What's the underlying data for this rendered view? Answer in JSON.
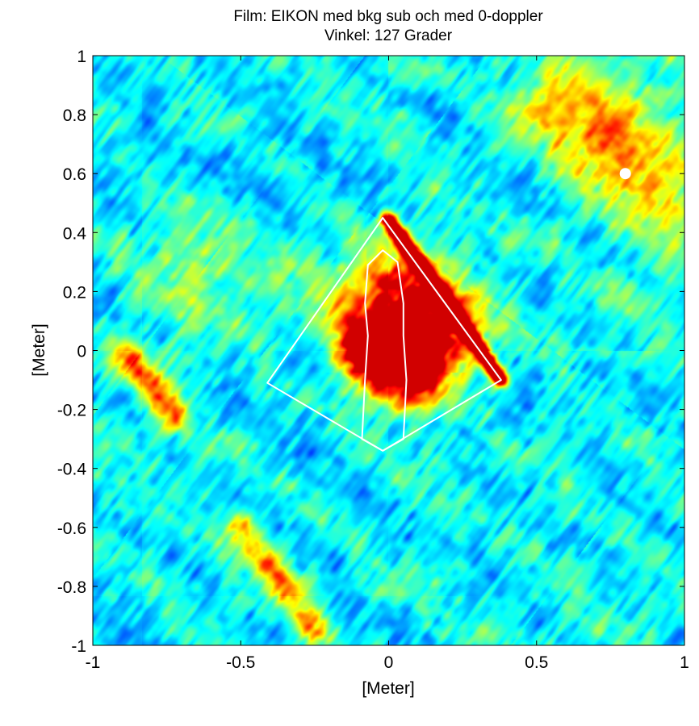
{
  "chart_data": {
    "type": "heatmap",
    "title": [
      "Film: EIKON med bkg sub och med 0-doppler",
      "Vinkel: 127 Grader"
    ],
    "xlabel": "[Meter]",
    "ylabel": "[Meter]",
    "xlim": [
      -1,
      1
    ],
    "ylim": [
      -1,
      1
    ],
    "xticks": [
      -1,
      -0.5,
      0,
      0.5,
      1
    ],
    "xtick_labels": [
      "-1",
      "-0.5",
      "0",
      "0.5",
      "1"
    ],
    "yticks": [
      1,
      0.8,
      0.6,
      0.4,
      0.2,
      0,
      -0.2,
      -0.4,
      -0.6,
      -0.8,
      -1
    ],
    "ytick_labels": [
      "1",
      "0.8",
      "0.6",
      "0.4",
      "0.2",
      "0",
      "-0.2",
      "-0.4",
      "-0.6",
      "-0.8",
      "-1"
    ],
    "colormap": "jet",
    "stripe_angle_deg": 127,
    "hotspots": [
      {
        "x": 0.12,
        "y": 0.05,
        "level": 0.62,
        "spread": 0.11
      },
      {
        "x": 0.03,
        "y": 0.15,
        "level": 0.5,
        "spread": 0.14
      },
      {
        "x": -0.06,
        "y": 0.0,
        "level": 0.62,
        "spread": 0.07
      },
      {
        "x": 0.05,
        "y": -0.07,
        "level": 0.5,
        "spread": 0.09
      },
      {
        "x": -0.65,
        "y": 0.25,
        "level": 0.15,
        "spread": 0.15
      },
      {
        "x": 0.78,
        "y": 0.72,
        "level": 0.2,
        "spread": 0.2
      }
    ],
    "streaks": [
      {
        "from": [
          -0.88,
          -0.02
        ],
        "to": [
          -0.72,
          -0.22
        ],
        "level": 0.4,
        "width": 0.035
      },
      {
        "from": [
          -0.5,
          -0.6
        ],
        "to": [
          -0.25,
          -0.95
        ],
        "level": 0.35,
        "width": 0.035
      },
      {
        "from": [
          0.0,
          0.44
        ],
        "to": [
          0.38,
          -0.1
        ],
        "level": 0.98,
        "width": 0.018
      },
      {
        "from": [
          0.55,
          0.85
        ],
        "to": [
          0.95,
          0.5
        ],
        "level": 0.22,
        "width": 0.08
      }
    ],
    "overlays": [
      {
        "kind": "polygon",
        "color": "#ffffff",
        "points": [
          [
            -0.02,
            0.45
          ],
          [
            0.38,
            -0.1
          ],
          [
            -0.02,
            -0.34
          ],
          [
            -0.41,
            -0.11
          ]
        ]
      },
      {
        "kind": "outline",
        "color": "#ffffff",
        "points": [
          [
            -0.02,
            0.34
          ],
          [
            -0.07,
            0.29
          ],
          [
            -0.08,
            0.16
          ],
          [
            -0.07,
            0.05
          ],
          [
            -0.08,
            -0.1
          ],
          [
            -0.09,
            -0.3
          ],
          [
            -0.02,
            -0.34
          ],
          [
            0.05,
            -0.3
          ],
          [
            0.06,
            -0.1
          ],
          [
            0.05,
            0.05
          ],
          [
            0.05,
            0.16
          ],
          [
            0.03,
            0.3
          ]
        ]
      },
      {
        "kind": "point",
        "color": "#ffffff",
        "x": 0.8,
        "y": 0.6
      }
    ]
  }
}
